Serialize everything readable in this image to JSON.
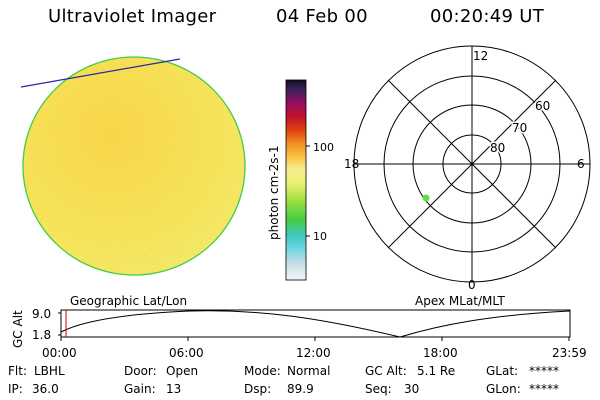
{
  "header": {
    "title": "Ultraviolet Imager",
    "date": "04 Feb 00",
    "time": "00:20:49 UT"
  },
  "colorbar": {
    "label": "photon cm-2s-1",
    "ticks": [
      "100",
      "10"
    ]
  },
  "polar": {
    "hour_labels": [
      "12",
      "6",
      "0",
      "18"
    ],
    "lat_labels": [
      "80",
      "70",
      "60"
    ]
  },
  "timeline": {
    "ylabel": "GC Alt",
    "yticks": [
      "9.0",
      "1.8"
    ],
    "left_title": "Geographic Lat/Lon",
    "right_title": "Apex MLat/MLT",
    "xticks": [
      "00:00",
      "06:00",
      "12:00",
      "18:00",
      "23:59"
    ]
  },
  "status": {
    "row1": [
      {
        "label": "Flt:",
        "value": "LBHL"
      },
      {
        "label": "Door:",
        "value": "Open"
      },
      {
        "label": "Mode:",
        "value": "Normal"
      },
      {
        "label": "GC Alt:",
        "value": "5.1 Re"
      },
      {
        "label": "GLat:",
        "value": "*****"
      }
    ],
    "row2": [
      {
        "label": "IP:",
        "value": "36.0"
      },
      {
        "label": "Gain:",
        "value": "13"
      },
      {
        "label": "Dsp:",
        "value": "89.9"
      },
      {
        "label": "Seq:",
        "value": "30"
      },
      {
        "label": "GLon:",
        "value": "*****"
      }
    ]
  },
  "colors": {
    "terminator_line": "#2a2aa0",
    "limb": "#44cc44",
    "grid": "#000000",
    "marker": "#66dd44",
    "time_marker": "#cc0000"
  }
}
